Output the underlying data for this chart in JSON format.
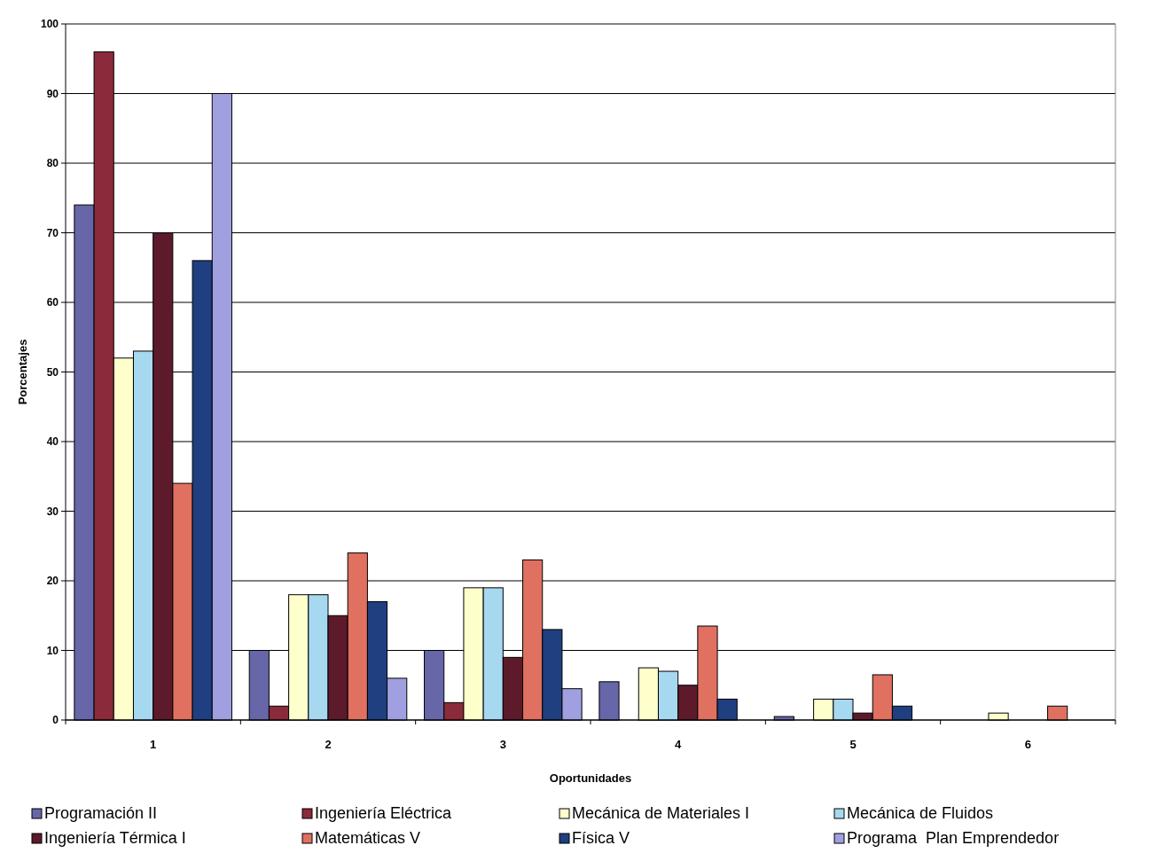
{
  "chart_data": {
    "type": "bar",
    "xlabel": "Oportunidades",
    "ylabel": "Porcentajes",
    "categories": [
      "1",
      "2",
      "3",
      "4",
      "5",
      "6"
    ],
    "series": [
      {
        "name": "Programación II",
        "color": "#6666a8",
        "values": [
          74,
          10,
          10,
          5.5,
          0.5,
          null
        ]
      },
      {
        "name": "Ingeniería Eléctrica",
        "color": "#8b2a3a",
        "values": [
          96,
          2,
          2.5,
          null,
          null,
          null
        ]
      },
      {
        "name": "Mecánica de Materiales I",
        "color": "#ffffcc",
        "values": [
          52,
          18,
          19,
          7.5,
          3,
          1
        ]
      },
      {
        "name": "Mecánica de Fluidos",
        "color": "#a6d8f0",
        "values": [
          53,
          18,
          19,
          7,
          3,
          null
        ]
      },
      {
        "name": "Ingeniería Térmica I",
        "color": "#5c1a2a",
        "values": [
          70,
          15,
          9,
          5,
          1,
          null
        ]
      },
      {
        "name": "Matemáticas V",
        "color": "#e07060",
        "values": [
          34,
          24,
          23,
          13.5,
          6.5,
          2
        ]
      },
      {
        "name": "Física V",
        "color": "#1f3f80",
        "values": [
          66,
          17,
          13,
          3,
          2,
          null
        ]
      },
      {
        "name": "Programa  Plan Emprendedor",
        "color": "#a0a0e0",
        "values": [
          90,
          6,
          4.5,
          null,
          null,
          null
        ]
      }
    ],
    "ylim": [
      0,
      100
    ],
    "yticks": [
      0,
      10,
      20,
      30,
      40,
      50,
      60,
      70,
      80,
      90,
      100
    ],
    "grid": "y",
    "legend": "bottom"
  }
}
